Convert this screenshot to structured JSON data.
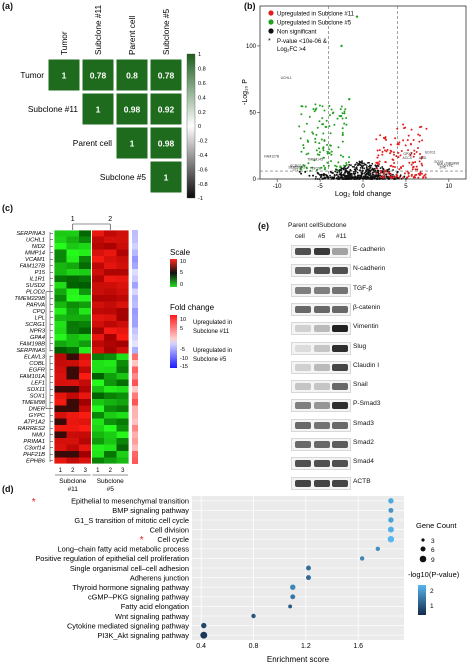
{
  "panels": {
    "a": "(a)",
    "b": "(b)",
    "c": "(c)",
    "d": "(d)",
    "e": "(e)"
  },
  "corr": {
    "labels": [
      "Tumor",
      "Subclone #11",
      "Parent cell",
      "Subclone #5"
    ],
    "cells": [
      {
        "row": 0,
        "col": 0,
        "value": "1"
      },
      {
        "row": 0,
        "col": 1,
        "value": "0.78"
      },
      {
        "row": 0,
        "col": 2,
        "value": "0.8"
      },
      {
        "row": 0,
        "col": 3,
        "value": "0.78"
      },
      {
        "row": 1,
        "col": 1,
        "value": "1"
      },
      {
        "row": 1,
        "col": 2,
        "value": "0.98"
      },
      {
        "row": 1,
        "col": 3,
        "value": "0.92"
      },
      {
        "row": 2,
        "col": 2,
        "value": "1"
      },
      {
        "row": 2,
        "col": 3,
        "value": "0.98"
      },
      {
        "row": 3,
        "col": 3,
        "value": "1"
      }
    ],
    "colorbar_ticks": [
      "1",
      "0.8",
      "0.6",
      "0.4",
      "0.2",
      "0",
      "-0.2",
      "-0.4",
      "-0.6",
      "-0.8",
      "-1"
    ],
    "cell_color": "#1e6b1e"
  },
  "volcano": {
    "legend": [
      "Upregulated in Subclone #11",
      "Upregulated in Subclone #5",
      "Non significant"
    ],
    "note_line1": "P-value <10e-06 &",
    "note_line2": "Log₂FC >4",
    "ylabel": "-Log₁₀ P",
    "xlabel": "Log₂ fold change",
    "xticks": [
      "-10",
      "-5",
      "0",
      "5",
      "10"
    ],
    "yticks": [
      "0",
      "50",
      "100"
    ],
    "colors": {
      "up11": "#e02020",
      "up5": "#22a022",
      "ns": "#111111"
    },
    "gene_labels": [
      "UCHL1",
      "FAM127B",
      "TMEM145",
      "SCRG1",
      "SERPINA5",
      "LPL",
      "TOP2B",
      "GPX8",
      "SOX11",
      "ACCS",
      "AMD",
      "SOX5",
      "NMU",
      "TMEM98",
      "ZFIL",
      "GYPC"
    ]
  },
  "heatmap": {
    "group_labels": [
      "1",
      "2"
    ],
    "genes": [
      "SERPINA3",
      "UCHL1",
      "NID2",
      "MMP14",
      "VCAM1",
      "FAM127B",
      "P15",
      "IL1R1",
      "SUSD2",
      "PLOD2",
      "TMEM229B",
      "PARVA",
      "CPQ",
      "LPL",
      "SCRG1",
      "NPR3",
      "GPA4",
      "FAM198B",
      "SERPINA5",
      "ELAVL3",
      "COBL",
      "EGFR",
      "FAM101A",
      "LEF1",
      "SOX11",
      "SOX1",
      "TMEM98",
      "DNER",
      "GYPC",
      "ATP1A2",
      "RARRES2",
      "NMU",
      "PRIMA1",
      "C3orf14",
      "PHF21B",
      "EPHB6"
    ],
    "scale_title": "Scale",
    "scale_ticks": [
      "10",
      "5",
      "0"
    ],
    "fc_title": "Fold change",
    "fc_ticks_up": [
      "10",
      "5"
    ],
    "fc_ticks_down": [
      "-5",
      "-10",
      "-15"
    ],
    "fc_up_label": "Upregulated in Subclone #11",
    "fc_down_label": "Upregulated in Subclone #5",
    "col_numbers": [
      "1",
      "2",
      "3",
      "1",
      "2",
      "3"
    ],
    "group_names": [
      "Subclone #11",
      "Subclone #5"
    ]
  },
  "western": {
    "header_left": "Parent cell",
    "header_right": "Subclone",
    "subheaders": [
      "#5",
      "#11"
    ],
    "proteins": [
      "E-cadherin",
      "N-cadherin",
      "TGF-β",
      "β-catenin",
      "Vimentin",
      "Slug",
      "Claudin I",
      "Snail",
      "P-Smad3",
      "Smad3",
      "Smad2",
      "Smad4",
      "ACTB"
    ]
  },
  "enrichment": {
    "xlabel": "Enrichment score",
    "xticks": [
      "0.4",
      "0.8",
      "1.2",
      "1.6"
    ],
    "legend_count_title": "Gene Count",
    "legend_count_values": [
      "3",
      "6",
      "9"
    ],
    "legend_p_title": "-log10(P-value)",
    "legend_p_ticks": [
      "2",
      "1"
    ],
    "pathways": [
      {
        "name": "Epithelial to mesenchymal transition",
        "score": 1.85,
        "count": 6,
        "p": 2.3,
        "star": true
      },
      {
        "name": "BMP signaling pathway",
        "score": 1.85,
        "count": 5,
        "p": 2.0,
        "star": false
      },
      {
        "name": "G1_S transition of mitotic cell cycle",
        "score": 1.85,
        "count": 6,
        "p": 2.2,
        "star": false
      },
      {
        "name": "Cell division",
        "score": 1.85,
        "count": 7,
        "p": 2.4,
        "star": false
      },
      {
        "name": "Cell cycle",
        "score": 1.85,
        "count": 8,
        "p": 2.5,
        "star": true
      },
      {
        "name": "Long–chain fatty acid metabolic process",
        "score": 1.75,
        "count": 4,
        "p": 1.9,
        "star": false
      },
      {
        "name": "Positive regulation of epithelial cell proliferation",
        "score": 1.63,
        "count": 4,
        "p": 1.8,
        "star": false
      },
      {
        "name": "Single organismal cell–cell adhesion",
        "score": 1.22,
        "count": 5,
        "p": 1.5,
        "star": false
      },
      {
        "name": "Adherens junction",
        "score": 1.22,
        "count": 5,
        "p": 1.4,
        "star": false
      },
      {
        "name": "Thyroid hormone signaling pathway",
        "score": 1.1,
        "count": 6,
        "p": 1.8,
        "star": false
      },
      {
        "name": "cGMP–PKG signaling pathway",
        "score": 1.1,
        "count": 5,
        "p": 1.6,
        "star": false
      },
      {
        "name": "Fatty acid elongation",
        "score": 1.08,
        "count": 3,
        "p": 1.2,
        "star": false
      },
      {
        "name": "Wnt signaling pathway",
        "score": 0.8,
        "count": 4,
        "p": 1.1,
        "star": false
      },
      {
        "name": "Cytokine mediated signaling pathway",
        "score": 0.42,
        "count": 6,
        "p": 0.9,
        "star": false
      },
      {
        "name": "PI3K_Akt signaling pathway",
        "score": 0.42,
        "count": 9,
        "p": 0.7,
        "star": false
      }
    ]
  }
}
